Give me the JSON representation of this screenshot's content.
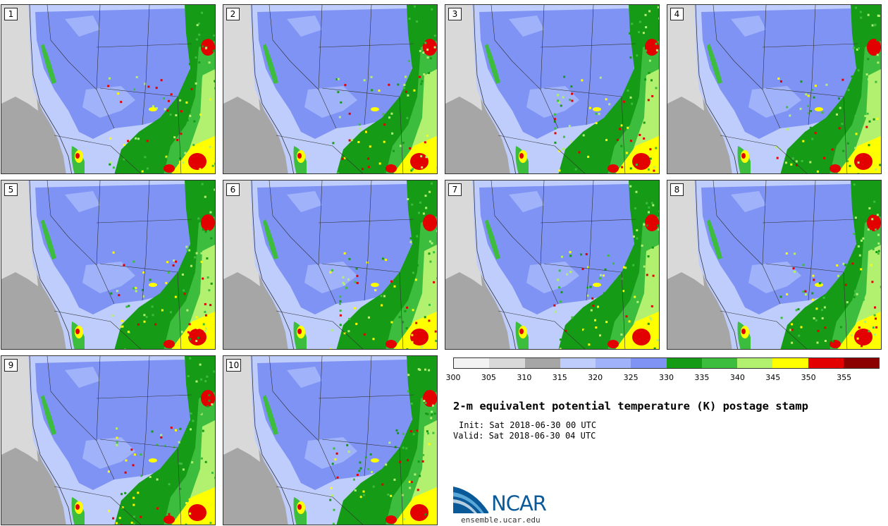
{
  "panels": [
    {
      "label": "1"
    },
    {
      "label": "2"
    },
    {
      "label": "3"
    },
    {
      "label": "4"
    },
    {
      "label": "5"
    },
    {
      "label": "6"
    },
    {
      "label": "7"
    },
    {
      "label": "8"
    },
    {
      "label": "9"
    },
    {
      "label": "10"
    }
  ],
  "colorbar": {
    "colors": [
      "#f2f2f2",
      "#d9d9d9",
      "#a6a6a6",
      "#bfcdfd",
      "#a0b3fa",
      "#7f93f4",
      "#169b16",
      "#3dbd3d",
      "#b2f070",
      "#ffff00",
      "#e20000",
      "#8b0000"
    ],
    "ticks": [
      "300",
      "305",
      "310",
      "315",
      "320",
      "325",
      "330",
      "335",
      "340",
      "345",
      "350",
      "355"
    ]
  },
  "title": "2-m equivalent potential temperature (K) postage stamp",
  "init": "Init: Sat 2018-06-30 00 UTC",
  "valid": "Valid: Sat 2018-06-30 04 UTC",
  "logo": {
    "text": "NCAR",
    "url": "ensemble.ucar.edu"
  }
}
